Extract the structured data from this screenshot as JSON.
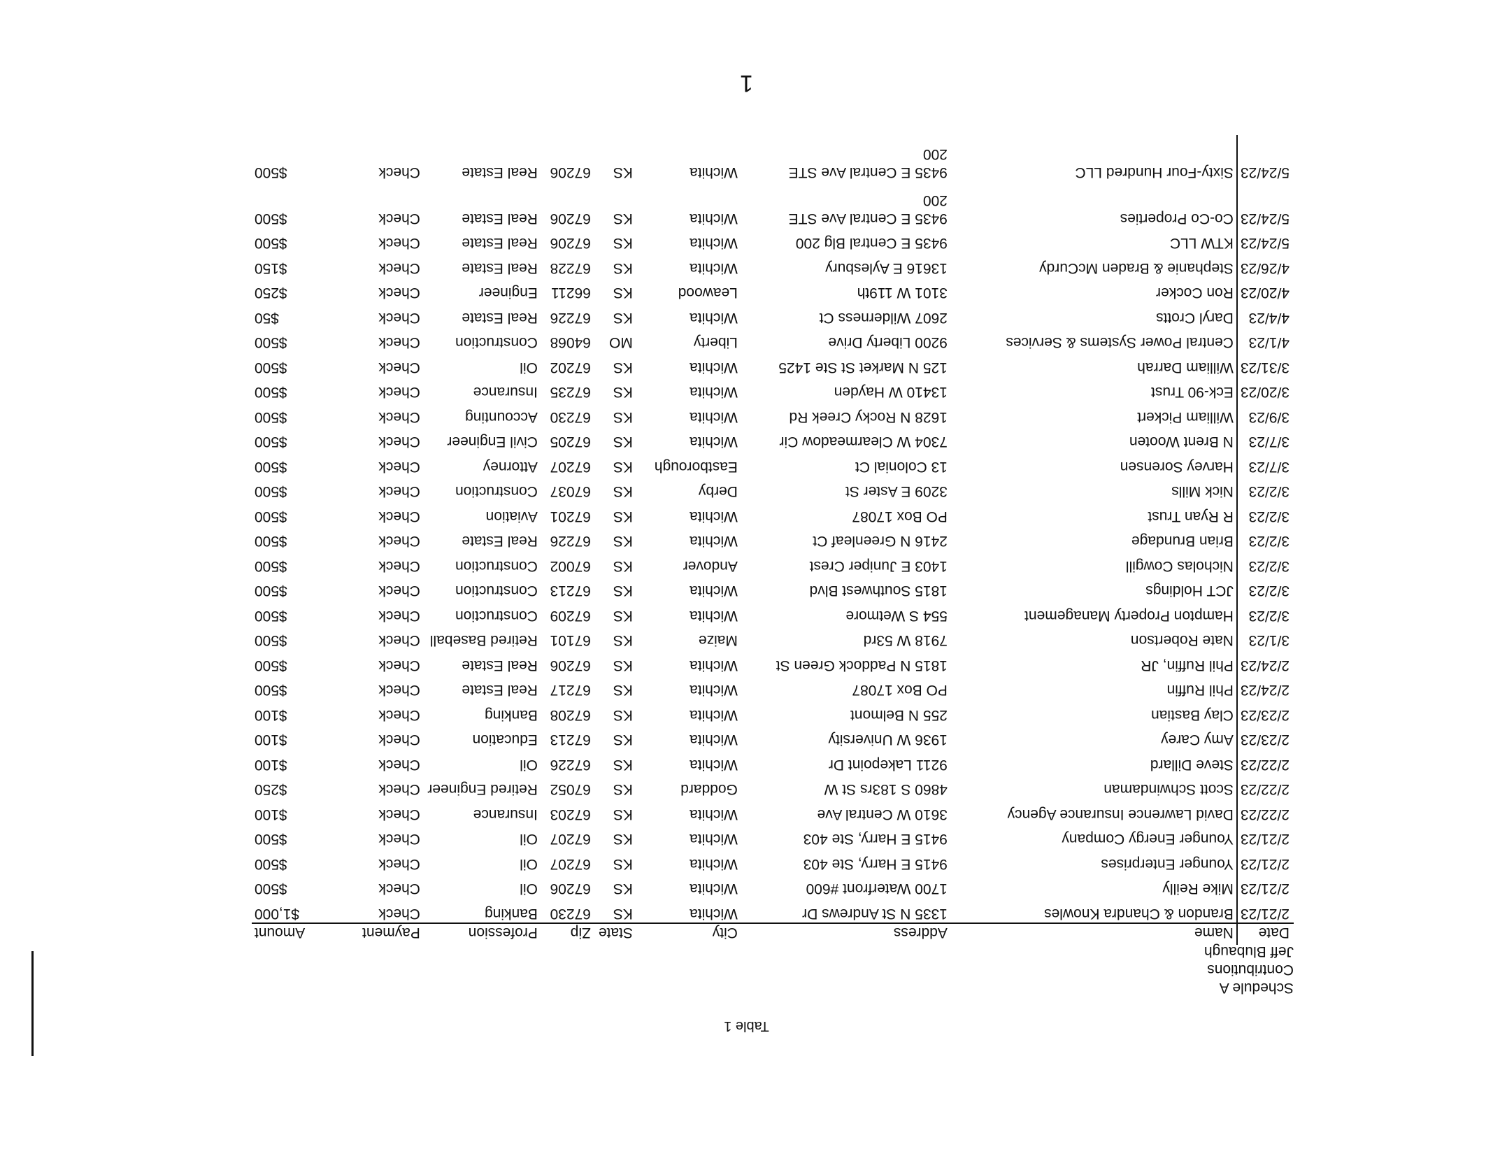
{
  "page": {
    "caption": "Table 1",
    "page_number": "1"
  },
  "header": {
    "schedule": "Schedule A",
    "section": "Contributions",
    "candidate": "Jeff Blubaugh"
  },
  "columns": {
    "date": "Date",
    "name": "Name",
    "address": "Address",
    "city": "City",
    "state": "State",
    "zip": "Zip",
    "profession": "Profession",
    "payment": "Payment",
    "amount": "Amount"
  },
  "rows": [
    {
      "date": "2/21/23",
      "name": "Brandon & Chandra Knowles",
      "address": "1335 N St Andrews Dr",
      "city": "Wichita",
      "state": "KS",
      "zip": "67230",
      "profession": "Banking",
      "payment": "Check",
      "amount": "$1,000"
    },
    {
      "date": "2/21/23",
      "name": "Mike Reilly",
      "address": "1700 Waterfront #600",
      "city": "Wichita",
      "state": "KS",
      "zip": "67206",
      "profession": "Oil",
      "payment": "Check",
      "amount": "$500"
    },
    {
      "date": "2/21/23",
      "name": "Younger Enterprises",
      "address": "9415 E Harry, Ste 403",
      "city": "Wichita",
      "state": "KS",
      "zip": "67207",
      "profession": "Oil",
      "payment": "Check",
      "amount": "$500"
    },
    {
      "date": "2/21/23",
      "name": "Younger Energy Company",
      "address": "9415 E Harry, Ste 403",
      "city": "Wichita",
      "state": "KS",
      "zip": "67207",
      "profession": "Oil",
      "payment": "Check",
      "amount": "$500"
    },
    {
      "date": "2/22/23",
      "name": "David Lawrence Insurance Agency",
      "address": "3610 W Central Ave",
      "city": "Wichita",
      "state": "KS",
      "zip": "67203",
      "profession": "Insurance",
      "payment": "Check",
      "amount": "$100"
    },
    {
      "date": "2/22/23",
      "name": "Scott Schwindaman",
      "address": "4860 S 183rs St W",
      "city": "Goddard",
      "state": "KS",
      "zip": "67052",
      "profession": "Retired Engineer",
      "payment": "Check",
      "amount": "$250"
    },
    {
      "date": "2/22/23",
      "name": "Steve Dillard",
      "address": "9211 Lakepoint Dr",
      "city": "Wichita",
      "state": "KS",
      "zip": "67226",
      "profession": "Oil",
      "payment": "Check",
      "amount": "$100"
    },
    {
      "date": "2/23/23",
      "name": "Amy Carey",
      "address": "1936 W University",
      "city": "Wichita",
      "state": "KS",
      "zip": "67213",
      "profession": "Education",
      "payment": "Check",
      "amount": "$100"
    },
    {
      "date": "2/23/23",
      "name": "Clay Bastian",
      "address": "255 N Belmont",
      "city": "Wichita",
      "state": "KS",
      "zip": "67208",
      "profession": "Banking",
      "payment": "Check",
      "amount": "$100"
    },
    {
      "date": "2/24/23",
      "name": "Phil Ruffin",
      "address": "PO Box 17087",
      "city": "Wichita",
      "state": "KS",
      "zip": "67217",
      "profession": "Real Estate",
      "payment": "Check",
      "amount": "$500"
    },
    {
      "date": "2/24/23",
      "name": "Phil Ruffin, JR",
      "address": "1815 N Paddock Green St",
      "city": "Wichita",
      "state": "KS",
      "zip": "67206",
      "profession": "Real Estate",
      "payment": "Check",
      "amount": "$500"
    },
    {
      "date": "3/1/23",
      "name": "Nate Robertson",
      "address": "7918 W 53rd",
      "city": "Maize",
      "state": "KS",
      "zip": "67101",
      "profession": "Retired Baseball",
      "payment": "Check",
      "amount": "$500"
    },
    {
      "date": "3/2/23",
      "name": "Hampton Property Management",
      "address": "554 S Wetmore",
      "city": "Wichita",
      "state": "KS",
      "zip": "67209",
      "profession": "Construction",
      "payment": "Check",
      "amount": "$500"
    },
    {
      "date": "3/2/23",
      "name": "JCT Holdings",
      "address": "1815 Southwest Blvd",
      "city": "Wichita",
      "state": "KS",
      "zip": "67213",
      "profession": "Construction",
      "payment": "Check",
      "amount": "$500"
    },
    {
      "date": "3/2/23",
      "name": "Nicholas Cowgill",
      "address": "1403 E Juniper Crest",
      "city": "Andover",
      "state": "KS",
      "zip": "67002",
      "profession": "Construction",
      "payment": "Check",
      "amount": "$500"
    },
    {
      "date": "3/2/23",
      "name": "Brian Brundage",
      "address": "2416 N Greenleaf Ct",
      "city": "Wichita",
      "state": "KS",
      "zip": "67226",
      "profession": "Real Estate",
      "payment": "Check",
      "amount": "$500"
    },
    {
      "date": "3/2/23",
      "name": "R Ryan Trust",
      "address": "PO Box 17087",
      "city": "Wichita",
      "state": "KS",
      "zip": "67201",
      "profession": "Aviation",
      "payment": "Check",
      "amount": "$500"
    },
    {
      "date": "3/2/23",
      "name": "Nick Mills",
      "address": "3209 E Aster St",
      "city": "Derby",
      "state": "KS",
      "zip": "67037",
      "profession": "Construction",
      "payment": "Check",
      "amount": "$500"
    },
    {
      "date": "3/7/23",
      "name": "Harvey Sorensen",
      "address": "13 Colonial Ct",
      "city": "Eastborough",
      "state": "KS",
      "zip": "67207",
      "profession": "Attorney",
      "payment": "Check",
      "amount": "$500"
    },
    {
      "date": "3/7/23",
      "name": "N Brent Wooten",
      "address": "7304 W Clearmeadow Cir",
      "city": "Wichita",
      "state": "KS",
      "zip": "67205",
      "profession": "Civil Engineer",
      "payment": "Check",
      "amount": "$500"
    },
    {
      "date": "3/9/23",
      "name": "William Pickert",
      "address": "1628 N Rocky Creek Rd",
      "city": "Wichita",
      "state": "KS",
      "zip": "67230",
      "profession": "Accounting",
      "payment": "Check",
      "amount": "$500"
    },
    {
      "date": "3/20/23",
      "name": "Eck-90 Trust",
      "address": "13410 W Hayden",
      "city": "Wichita",
      "state": "KS",
      "zip": "67235",
      "profession": "Insurance",
      "payment": "Check",
      "amount": "$500"
    },
    {
      "date": "3/31/23",
      "name": "William Darrah",
      "address": "125 N Market St Ste 1425",
      "city": "Wichita",
      "state": "KS",
      "zip": "67202",
      "profession": "Oil",
      "payment": "Check",
      "amount": "$500"
    },
    {
      "date": "4/1/23",
      "name": "Central Power Systems & Services",
      "address": "9200 Liberty Drive",
      "city": "Liberty",
      "state": "MO",
      "zip": "64068",
      "profession": "Construction",
      "payment": "Check",
      "amount": "$500"
    },
    {
      "date": "4/4/23",
      "name": "Daryl Crotts",
      "address": "2607 Wilderness Ct",
      "city": "Wichita",
      "state": "KS",
      "zip": "67226",
      "profession": "Real Estate",
      "payment": "Check",
      "amount": "$50"
    },
    {
      "date": "4/20/23",
      "name": "Ron Cocker",
      "address": "3101 W 119th",
      "city": "Leawood",
      "state": "KS",
      "zip": "66211",
      "profession": "Engineer",
      "payment": "Check",
      "amount": "$250"
    },
    {
      "date": "4/26/23",
      "name": "Stephanie & Braden McCurdy",
      "address": "13616 E Aylesbury",
      "city": "Wichita",
      "state": "KS",
      "zip": "67228",
      "profession": "Real Estate",
      "payment": "Check",
      "amount": "$150"
    },
    {
      "date": "5/24/23",
      "name": "KTW LLC",
      "address": "9435 E Central Blg 200",
      "city": "Wichita",
      "state": "KS",
      "zip": "67206",
      "profession": "Real Estate",
      "payment": "Check",
      "amount": "$500"
    },
    {
      "date": "5/24/23",
      "name": "Co-Co Properties",
      "address": "9435 E Central Ave STE\n200",
      "city": "Wichita",
      "state": "KS",
      "zip": "67206",
      "profession": "Real Estate",
      "payment": "Check",
      "amount": "$500"
    },
    {
      "date": "5/24/23",
      "name": "Sixty-Four Hundred LLC",
      "address": "9435 E Central Ave STE\n200",
      "city": "Wichita",
      "state": "KS",
      "zip": "67206",
      "profession": "Real Estate",
      "payment": "Check",
      "amount": "$500"
    }
  ]
}
